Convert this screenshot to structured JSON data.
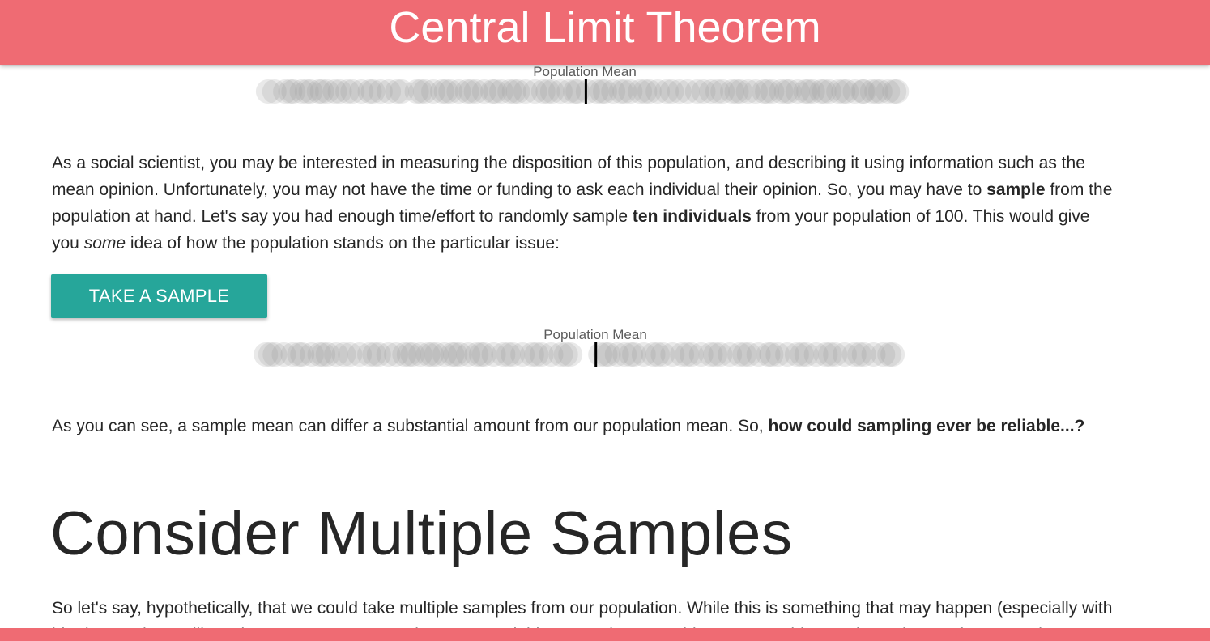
{
  "header": {
    "title": "Central Limit Theorem"
  },
  "colors": {
    "header_bg": "#ef6b73",
    "button_bg": "#26a69a",
    "mean_line": "#000000",
    "dot": "#9a9a9a"
  },
  "population_strip": {
    "mean_label": "Population Mean",
    "mean": 0.505,
    "values": [
      0.015,
      0.032,
      0.045,
      0.058,
      0.072,
      0.085,
      0.098,
      0.11,
      0.138,
      0.152,
      0.165,
      0.182,
      0.195,
      0.208,
      0.239,
      0.252,
      0.265,
      0.279,
      0.292,
      0.305,
      0.318,
      0.332,
      0.345,
      0.358,
      0.372,
      0.385,
      0.398,
      0.41,
      0.425,
      0.438,
      0.452,
      0.465,
      0.478,
      0.492,
      0.508,
      0.522,
      0.535,
      0.548,
      0.56,
      0.575,
      0.59,
      0.605,
      0.618,
      0.632,
      0.652,
      0.665,
      0.68,
      0.702,
      0.72,
      0.735,
      0.748,
      0.76,
      0.772,
      0.785,
      0.798,
      0.812,
      0.825,
      0.838,
      0.85,
      0.862,
      0.875,
      0.888,
      0.902,
      0.915,
      0.928,
      0.942,
      0.955,
      0.968,
      0.98,
      0.005,
      0.04,
      0.066,
      0.09,
      0.118,
      0.13,
      0.17,
      0.215,
      0.245,
      0.285,
      0.324,
      0.362,
      0.392,
      0.445,
      0.488,
      0.53,
      0.566,
      0.598,
      0.64,
      0.69,
      0.712,
      0.742,
      0.79,
      0.82,
      0.855,
      0.88,
      0.91,
      0.94,
      0.962,
      0.99,
      0.994
    ]
  },
  "intro_paragraph": {
    "p1": "As a social scientist, you may be interested in measuring the disposition of this population, and describing it using information such as the mean opinion. Unfortunately, you may not have the time or funding to ask each individual their opinion. So, you may have to ",
    "b1": "sample",
    "p2": " from the population at hand. Let's say you had enough time/effort to randomly sample ",
    "b2": "ten individuals",
    "p3": " from your population of 100. This would give you ",
    "i1": "some",
    "p4": " idea of how the population stands on the particular issue:"
  },
  "sample_button": {
    "label": "TAKE A SAMPLE"
  },
  "sample_strip": {
    "mean_label": "Population Mean",
    "mean": 0.525,
    "values": [
      0.008,
      0.022,
      0.036,
      0.05,
      0.065,
      0.08,
      0.092,
      0.105,
      0.118,
      0.14,
      0.155,
      0.17,
      0.185,
      0.2,
      0.212,
      0.225,
      0.238,
      0.25,
      0.262,
      0.275,
      0.288,
      0.3,
      0.312,
      0.325,
      0.338,
      0.35,
      0.365,
      0.38,
      0.395,
      0.41,
      0.425,
      0.44,
      0.455,
      0.47,
      0.485,
      0.532,
      0.545,
      0.558,
      0.57,
      0.585,
      0.6,
      0.615,
      0.63,
      0.645,
      0.66,
      0.675,
      0.69,
      0.705,
      0.72,
      0.735,
      0.75,
      0.765,
      0.78,
      0.795,
      0.81,
      0.825,
      0.84,
      0.855,
      0.87,
      0.885,
      0.9,
      0.915,
      0.93,
      0.945,
      0.96,
      0.975,
      0.99,
      0.015,
      0.06,
      0.098,
      0.13,
      0.178,
      0.232,
      0.268,
      0.305,
      0.345,
      0.388,
      0.432,
      0.478,
      0.54,
      0.58,
      0.622,
      0.668,
      0.712,
      0.758,
      0.8,
      0.848,
      0.892,
      0.938,
      0.985
    ]
  },
  "result_paragraph": {
    "p1": "As you can see, a sample mean can differ a substantial amount from our population mean. So, ",
    "b1": "how could sampling ever be reliable...?"
  },
  "section": {
    "title": "Consider Multiple Samples"
  },
  "multi_paragraph": {
    "text": "So let's say, hypothetically, that we could take multiple samples from our population. While this is something that may happen (especially with big datasets) we will use it to compare our sample means and this way, using something to get an idea on the estimate of our sample"
  }
}
